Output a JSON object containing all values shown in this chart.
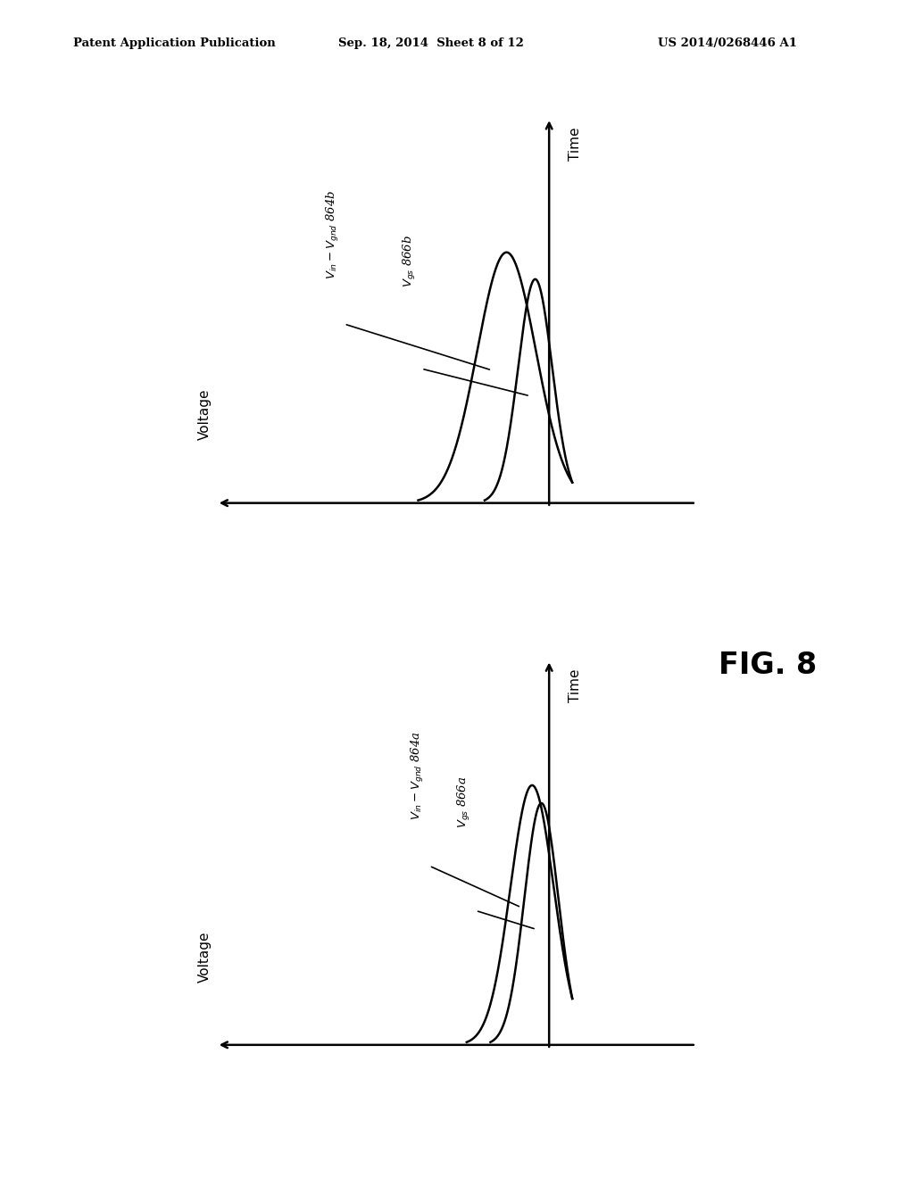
{
  "header_left": "Patent Application Publication",
  "header_center": "Sep. 18, 2014  Sheet 8 of 12",
  "header_right": "US 2014/0268446 A1",
  "fig_label": "FIG. 8",
  "background_color": "#ffffff",
  "top_graph": {
    "label1": "$V_{in} - V_{gnd}$ 864b",
    "label2": "$V_{gs}$ 866b",
    "curve1_mu": -0.55,
    "curve1_sigma": 0.38,
    "curve1_amp": 2.8,
    "curve2_mu": -0.18,
    "curve2_sigma": 0.22,
    "curve2_amp": 2.5
  },
  "bottom_graph": {
    "label1": "$V_{in} - V_{gnd}$ 864a",
    "label2": "$V_{gs}$ 866a",
    "curve1_mu": -0.22,
    "curve1_sigma": 0.28,
    "curve1_amp": 2.9,
    "curve2_mu": -0.1,
    "curve2_sigma": 0.22,
    "curve2_amp": 2.7
  }
}
